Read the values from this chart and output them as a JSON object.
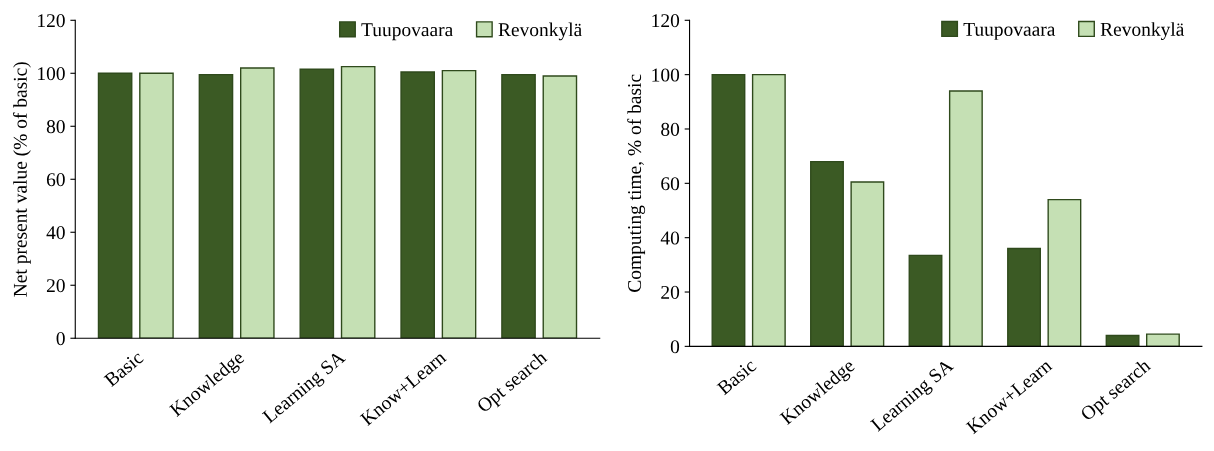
{
  "chart_data": [
    {
      "type": "bar",
      "ylabel": "Net present value (% of basic)",
      "categories": [
        "Basic",
        "Knowledge",
        "Learning SA",
        "Know+Learn",
        "Opt search"
      ],
      "series": [
        {
          "name": "Tuupovaara",
          "color": "#3b5a24",
          "values": [
            100,
            99.5,
            101.5,
            100.5,
            99.5
          ]
        },
        {
          "name": "Revonkylä",
          "color": "#c5e0b4",
          "values": [
            100,
            102,
            102.5,
            101,
            99
          ]
        }
      ],
      "ylim": [
        0,
        120
      ],
      "yticks": [
        0,
        20,
        40,
        60,
        80,
        100,
        120
      ],
      "legend": "top right",
      "grid": false
    },
    {
      "type": "bar",
      "ylabel": "Computing time, % of basic",
      "categories": [
        "Basic",
        "Knowledge",
        "Learning SA",
        "Know+Learn",
        "Opt search"
      ],
      "series": [
        {
          "name": "Tuupovaara",
          "color": "#3b5a24",
          "values": [
            100,
            68,
            33.5,
            36,
            4
          ]
        },
        {
          "name": "Revonkylä",
          "color": "#c5e0b4",
          "values": [
            100,
            60.5,
            94,
            54,
            4.5
          ]
        }
      ],
      "ylim": [
        0,
        120
      ],
      "yticks": [
        0,
        20,
        40,
        60,
        80,
        100,
        120
      ],
      "legend": "top right",
      "grid": false
    }
  ]
}
